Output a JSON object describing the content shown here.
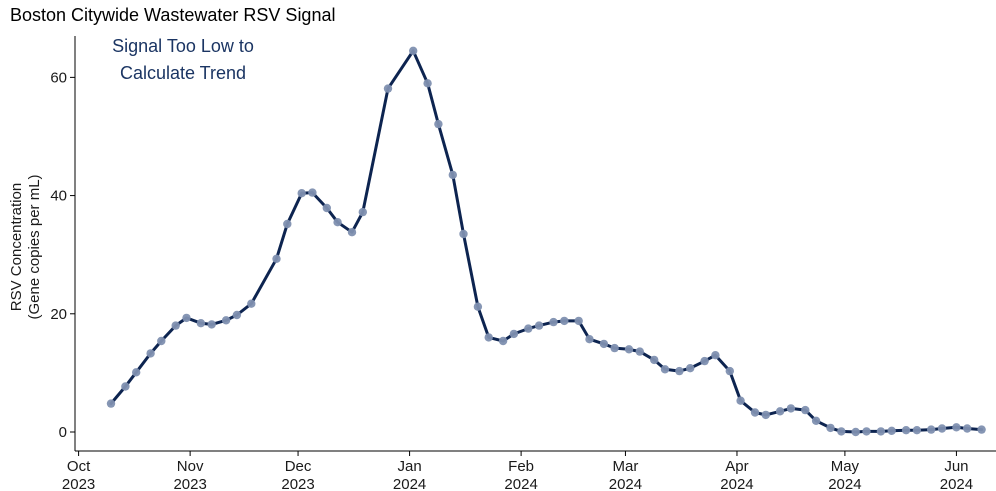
{
  "chart_data": {
    "type": "line",
    "title": "Boston Citywide Wastewater RSV Signal",
    "annotation": [
      "Signal Too Low to",
      "Calculate Trend"
    ],
    "ylabel": [
      "RSV Concentration",
      "(Gene copies per mL)"
    ],
    "xlabel": "",
    "ylim": [
      0,
      67
    ],
    "xlim": [
      "2023-09-30",
      "2024-06-12"
    ],
    "yticks": [
      0,
      20,
      40,
      60
    ],
    "xticks": [
      {
        "date": "2023-10-01",
        "label": [
          "Oct",
          "2023"
        ]
      },
      {
        "date": "2023-11-01",
        "label": [
          "Nov",
          "2023"
        ]
      },
      {
        "date": "2023-12-01",
        "label": [
          "Dec",
          "2023"
        ]
      },
      {
        "date": "2024-01-01",
        "label": [
          "Jan",
          "2024"
        ]
      },
      {
        "date": "2024-02-01",
        "label": [
          "Feb",
          "2024"
        ]
      },
      {
        "date": "2024-03-01",
        "label": [
          "Mar",
          "2024"
        ]
      },
      {
        "date": "2024-04-01",
        "label": [
          "Apr",
          "2024"
        ]
      },
      {
        "date": "2024-05-01",
        "label": [
          "May",
          "2024"
        ]
      },
      {
        "date": "2024-06-01",
        "label": [
          "Jun",
          "2024"
        ]
      }
    ],
    "grid": false,
    "colors": {
      "line": "#0d2450",
      "point": "#7f90b0",
      "annotation": "#1b3563"
    },
    "series": [
      {
        "points": [
          [
            "2023-10-10",
            4.8
          ],
          [
            "2023-10-14",
            7.7
          ],
          [
            "2023-10-17",
            10.1
          ],
          [
            "2023-10-21",
            13.3
          ],
          [
            "2023-10-24",
            15.4
          ],
          [
            "2023-10-28",
            18.0
          ],
          [
            "2023-10-31",
            19.3
          ],
          [
            "2023-11-04",
            18.4
          ],
          [
            "2023-11-07",
            18.2
          ],
          [
            "2023-11-11",
            18.9
          ],
          [
            "2023-11-14",
            19.8
          ],
          [
            "2023-11-18",
            21.7
          ],
          [
            "2023-11-25",
            29.3
          ],
          [
            "2023-11-28",
            35.2
          ],
          [
            "2023-12-02",
            40.4
          ],
          [
            "2023-12-05",
            40.5
          ],
          [
            "2023-12-09",
            37.9
          ],
          [
            "2023-12-12",
            35.5
          ],
          [
            "2023-12-16",
            33.8
          ],
          [
            "2023-12-19",
            37.2
          ],
          [
            "2023-12-26",
            58.1
          ],
          [
            "2024-01-02",
            64.5
          ],
          [
            "2024-01-06",
            59.0
          ],
          [
            "2024-01-09",
            52.1
          ],
          [
            "2024-01-13",
            43.5
          ],
          [
            "2024-01-16",
            33.5
          ],
          [
            "2024-01-20",
            21.2
          ],
          [
            "2024-01-23",
            16.0
          ],
          [
            "2024-01-27",
            15.4
          ],
          [
            "2024-01-30",
            16.6
          ],
          [
            "2024-02-03",
            17.5
          ],
          [
            "2024-02-06",
            18.0
          ],
          [
            "2024-02-10",
            18.6
          ],
          [
            "2024-02-13",
            18.8
          ],
          [
            "2024-02-17",
            18.8
          ],
          [
            "2024-02-20",
            15.7
          ],
          [
            "2024-02-24",
            14.9
          ],
          [
            "2024-02-27",
            14.2
          ],
          [
            "2024-03-02",
            14.0
          ],
          [
            "2024-03-05",
            13.6
          ],
          [
            "2024-03-09",
            12.2
          ],
          [
            "2024-03-12",
            10.6
          ],
          [
            "2024-03-16",
            10.3
          ],
          [
            "2024-03-19",
            10.8
          ],
          [
            "2024-03-23",
            12.0
          ],
          [
            "2024-03-26",
            13.0
          ],
          [
            "2024-03-30",
            10.3
          ],
          [
            "2024-04-02",
            5.3
          ],
          [
            "2024-04-06",
            3.3
          ],
          [
            "2024-04-09",
            2.9
          ],
          [
            "2024-04-13",
            3.5
          ],
          [
            "2024-04-16",
            4.0
          ],
          [
            "2024-04-20",
            3.7
          ],
          [
            "2024-04-23",
            1.9
          ],
          [
            "2024-04-27",
            0.7
          ],
          [
            "2024-04-30",
            0.1
          ],
          [
            "2024-05-04",
            0.0
          ],
          [
            "2024-05-07",
            0.1
          ],
          [
            "2024-05-11",
            0.1
          ],
          [
            "2024-05-14",
            0.2
          ],
          [
            "2024-05-18",
            0.3
          ],
          [
            "2024-05-21",
            0.3
          ],
          [
            "2024-05-25",
            0.4
          ],
          [
            "2024-05-28",
            0.6
          ],
          [
            "2024-06-01",
            0.8
          ],
          [
            "2024-06-04",
            0.6
          ],
          [
            "2024-06-08",
            0.4
          ]
        ]
      }
    ]
  }
}
